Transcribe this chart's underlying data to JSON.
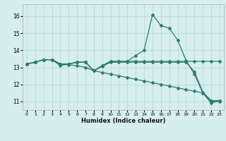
{
  "xlabel": "Humidex (Indice chaleur)",
  "background_color": "#d7eeee",
  "grid_color": "#b8d8d8",
  "line_color": "#2e7d6e",
  "xlim": [
    -0.5,
    23.5
  ],
  "ylim": [
    10.5,
    16.7
  ],
  "yticks": [
    11,
    12,
    13,
    14,
    15,
    16
  ],
  "xticks": [
    0,
    1,
    2,
    3,
    4,
    5,
    6,
    7,
    8,
    9,
    10,
    11,
    12,
    13,
    14,
    15,
    16,
    17,
    18,
    19,
    20,
    21,
    22,
    23
  ],
  "series1_x": [
    0,
    1,
    2,
    3,
    4,
    5,
    6,
    7,
    8,
    9,
    10,
    11,
    12,
    13,
    14,
    15,
    16,
    17,
    18,
    19,
    20,
    21,
    22,
    23
  ],
  "series1_y": [
    13.2,
    13.3,
    13.45,
    13.45,
    13.1,
    13.2,
    13.3,
    13.3,
    12.8,
    13.1,
    13.35,
    13.35,
    13.35,
    13.7,
    14.0,
    16.1,
    15.45,
    15.3,
    14.6,
    13.4,
    12.6,
    11.5,
    10.9,
    11.05
  ],
  "series2_x": [
    0,
    1,
    2,
    3,
    4,
    5,
    6,
    7,
    8,
    9,
    10,
    11,
    12,
    13,
    14,
    15,
    16,
    17,
    18,
    19,
    20,
    21,
    22,
    23
  ],
  "series2_y": [
    13.2,
    13.3,
    13.45,
    13.45,
    13.2,
    13.2,
    13.3,
    13.3,
    12.8,
    13.1,
    13.35,
    13.35,
    13.35,
    13.35,
    13.35,
    13.35,
    13.35,
    13.35,
    13.35,
    13.35,
    13.35,
    13.35,
    13.35,
    13.35
  ],
  "series3_x": [
    0,
    1,
    2,
    3,
    4,
    5,
    6,
    7,
    8,
    9,
    10,
    11,
    12,
    13,
    14,
    15,
    16,
    17,
    18,
    19,
    20,
    21,
    22,
    23
  ],
  "series3_y": [
    13.2,
    13.3,
    13.45,
    13.45,
    13.2,
    13.2,
    13.3,
    13.3,
    12.8,
    13.05,
    13.3,
    13.3,
    13.3,
    13.3,
    13.3,
    13.3,
    13.3,
    13.3,
    13.3,
    13.3,
    12.75,
    11.55,
    11.05,
    11.05
  ],
  "series4_x": [
    0,
    1,
    2,
    3,
    4,
    5,
    6,
    7,
    8,
    9,
    10,
    11,
    12,
    13,
    14,
    15,
    16,
    17,
    18,
    19,
    20,
    21,
    22,
    23
  ],
  "series4_y": [
    13.2,
    13.3,
    13.45,
    13.45,
    13.2,
    13.15,
    13.1,
    13.0,
    12.8,
    12.7,
    12.6,
    12.5,
    12.4,
    12.3,
    12.2,
    12.1,
    12.0,
    11.9,
    11.8,
    11.7,
    11.6,
    11.5,
    11.0,
    11.0
  ]
}
